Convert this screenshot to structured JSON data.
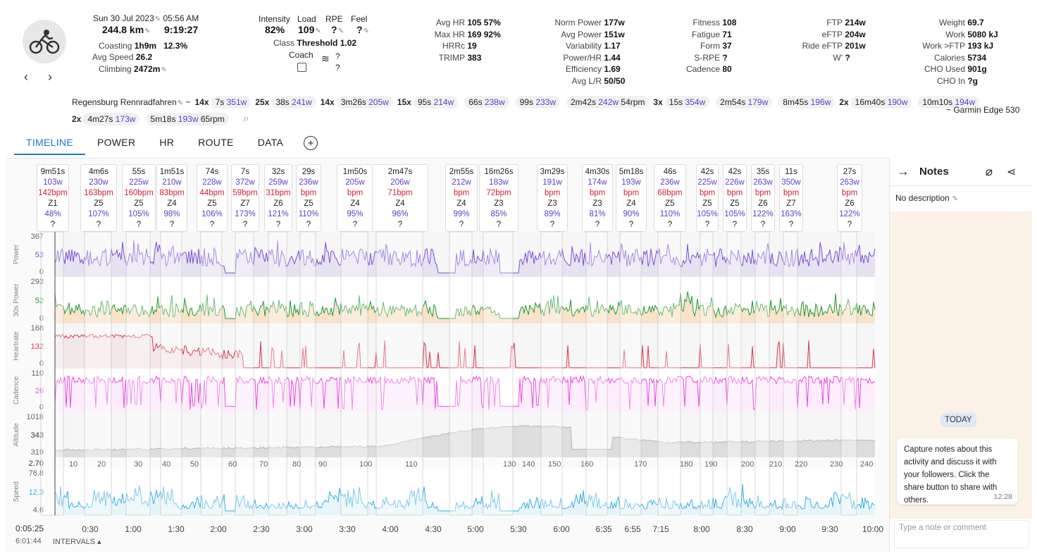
{
  "activity": {
    "date": "Sun 30 Jul 2023",
    "time": "05:56 AM",
    "distance": "244.8 km",
    "duration": "9:19:27",
    "coasting_label": "Coasting",
    "coasting_time": "1h9m",
    "coasting_pct": "12.3%",
    "avgspeed_label": "Avg Speed",
    "avgspeed": "26.2",
    "climbing_label": "Climbing",
    "climbing": "2472m"
  },
  "load": {
    "intensity_label": "Intensity",
    "intensity": "82%",
    "load_label": "Load",
    "load": "109",
    "rpe_label": "RPE",
    "rpe": "?",
    "feel_label": "Feel",
    "feel": "?",
    "class_label": "Class",
    "class": "Threshold",
    "class_val": "1.02",
    "coach_label": "Coach",
    "coach_q1": "?",
    "coach_q2": "?"
  },
  "hrstats": [
    {
      "k": "Avg HR",
      "v": "105",
      "x": "57%"
    },
    {
      "k": "Max HR",
      "v": "169",
      "x": "92%"
    },
    {
      "k": "HRRc",
      "v": "19",
      "x": ""
    },
    {
      "k": "TRIMP",
      "v": "383",
      "x": ""
    }
  ],
  "powerstats": [
    {
      "k": "Norm Power",
      "v": "177w"
    },
    {
      "k": "Avg Power",
      "v": "151w"
    },
    {
      "k": "Variability",
      "v": "1.17"
    },
    {
      "k": "Power/HR",
      "v": "1.44"
    },
    {
      "k": "Efficiency",
      "v": "1.69"
    },
    {
      "k": "Avg L/R",
      "v": "50/50"
    }
  ],
  "fitness": [
    {
      "k": "Fitness",
      "v": "108"
    },
    {
      "k": "Fatigue",
      "v": "71"
    },
    {
      "k": "Form",
      "v": "37"
    },
    {
      "k": "S-RPE",
      "v": "?"
    },
    {
      "k": "Cadence",
      "v": "80"
    }
  ],
  "ftp": [
    {
      "k": "FTP",
      "v": "214w"
    },
    {
      "k": "eFTP",
      "v": "204w"
    },
    {
      "k": "Ride eFTP",
      "v": "201w"
    },
    {
      "k": "W'",
      "v": "?"
    }
  ],
  "weight": [
    {
      "k": "Weight",
      "v": "69.7"
    },
    {
      "k": "Work",
      "v": "5080 kJ"
    },
    {
      "k": "Work >FTP",
      "v": "193 kJ"
    },
    {
      "k": "Calories",
      "v": "5734"
    },
    {
      "k": "CHO Used",
      "v": "901g"
    },
    {
      "k": "CHO In",
      "v": "?g"
    }
  ],
  "intervals_line": {
    "name": "Regensburg Rennradfahren",
    "tilde": "~",
    "device": "~ Garmin Edge 530"
  },
  "intervals": [
    {
      "n": "14x",
      "t": "7s",
      "w": "351w",
      "x": ""
    },
    {
      "n": "25x",
      "t": "38s",
      "w": "241w",
      "x": ""
    },
    {
      "n": "14x",
      "t": "3m26s",
      "w": "205w",
      "x": ""
    },
    {
      "n": "15x",
      "t": "95s",
      "w": "214w",
      "x": ""
    },
    {
      "n": "",
      "t": "66s",
      "w": "238w",
      "x": ""
    },
    {
      "n": "",
      "t": "99s",
      "w": "233w",
      "x": ""
    },
    {
      "n": "",
      "t": "2m42s",
      "w": "242w",
      "x": "54rpm"
    },
    {
      "n": "3x",
      "t": "15s",
      "w": "354w",
      "x": ""
    },
    {
      "n": "",
      "t": "2m54s",
      "w": "179w",
      "x": ""
    },
    {
      "n": "",
      "t": "8m45s",
      "w": "196w",
      "x": ""
    },
    {
      "n": "2x",
      "t": "16m40s",
      "w": "190w",
      "x": ""
    },
    {
      "n": "",
      "t": "10m10s",
      "w": "194w",
      "x": ""
    },
    {
      "n": "2x",
      "t": "4m27s",
      "w": "173w",
      "x": ""
    },
    {
      "n": "",
      "t": "5m18s",
      "w": "193w",
      "x": "65rpm"
    }
  ],
  "tabs": [
    "TIMELINE",
    "POWER",
    "HR",
    "ROUTE",
    "DATA"
  ],
  "boxes": [
    {
      "a": "9m51s",
      "b": "103w",
      "c": "142bpm",
      "d": "Z1",
      "e": "48%"
    },
    {
      "a": "4m6s",
      "b": "230w",
      "c": "163bpm",
      "d": "Z5",
      "e": "107%"
    },
    {
      "a": "55s",
      "b": "225w",
      "c": "160bpm",
      "d": "Z5",
      "e": "105%"
    },
    {
      "a": "1m51s",
      "b": "210w",
      "c": "83bpm",
      "d": "Z4",
      "e": "98%"
    },
    {
      "a": "74s",
      "b": "228w",
      "c": "44bpm",
      "d": "Z5",
      "e": "106%"
    },
    {
      "a": "7s",
      "b": "372w",
      "c": "59bpm",
      "d": "Z7",
      "e": "173%"
    },
    {
      "a": "32s",
      "b": "259w",
      "c": "31bpm",
      "d": "Z6",
      "e": "121%"
    },
    {
      "a": "29s",
      "b": "236w",
      "c": "bpm",
      "d": "Z5",
      "e": "110%"
    },
    {
      "a": "1m50s",
      "b": "205w",
      "c": "bpm",
      "d": "Z4",
      "e": "95%"
    },
    {
      "a": "2m47s",
      "b": "206w",
      "c": "71bpm",
      "d": "Z4",
      "e": "96%"
    },
    {
      "a": "2m55s",
      "b": "212w",
      "c": "bpm",
      "d": "Z4",
      "e": "99%"
    },
    {
      "a": "16m26s",
      "b": "183w",
      "c": "72bpm",
      "d": "Z3",
      "e": "85%"
    },
    {
      "a": "3m29s",
      "b": "191w",
      "c": "bpm",
      "d": "Z3",
      "e": "89%"
    },
    {
      "a": "4m30s",
      "b": "174w",
      "c": "bpm",
      "d": "Z3",
      "e": "81%"
    },
    {
      "a": "5m18s",
      "b": "193w",
      "c": "bpm",
      "d": "Z4",
      "e": "90%"
    },
    {
      "a": "46s",
      "b": "236w",
      "c": "68bpm",
      "d": "Z5",
      "e": "110%"
    },
    {
      "a": "42s",
      "b": "225w",
      "c": "bpm",
      "d": "Z5",
      "e": "105%"
    },
    {
      "a": "42s",
      "b": "226w",
      "c": "bpm",
      "d": "Z5",
      "e": "105%"
    },
    {
      "a": "35s",
      "b": "263w",
      "c": "bpm",
      "d": "Z6",
      "e": "122%"
    },
    {
      "a": "11s",
      "b": "350w",
      "c": "bpm",
      "d": "Z7",
      "e": "163%"
    },
    {
      "a": "27s",
      "b": "263w",
      "c": "bpm",
      "d": "Z6",
      "e": "122%"
    }
  ],
  "box_q": "?",
  "lanes": {
    "power": {
      "label": "Power",
      "max": "367",
      "mid": "53",
      "min": "0"
    },
    "power30": {
      "label": "30s Power",
      "max": "293",
      "mid": "52",
      "min": "0"
    },
    "hr": {
      "label": "Heartrate",
      "max": "168",
      "mid": "132",
      "min": "0"
    },
    "cadence": {
      "label": "Cadence",
      "max": "110",
      "mid": "26",
      "min": "0"
    },
    "altitude": {
      "label": "Altitude",
      "max": "1018",
      "mid": "343",
      "min": "319",
      "extra": "2.70"
    },
    "speed": {
      "label": "Speed",
      "max": "76.8",
      "mid": "12.3",
      "min": "4.6"
    }
  },
  "dist_ticks": [
    "10",
    "20",
    "30",
    "40",
    "50",
    "60",
    "70",
    "80",
    "90",
    "100",
    "110",
    "130",
    "140",
    "150",
    "160",
    "170",
    "180",
    "190",
    "200",
    "210",
    "220",
    "230",
    "240"
  ],
  "time_ticks": [
    "0:30",
    "1:00",
    "1:30",
    "2:00",
    "2:30",
    "3:00",
    "3:30",
    "4:00",
    "4:30",
    "5:00",
    "5:30",
    "6:00",
    "6:35",
    "6:55",
    "7:15",
    "8:00",
    "8:30",
    "9:00",
    "9:30",
    "10:00"
  ],
  "cursor_time": "0:05:25",
  "total_time": "6:01:44",
  "intervals_toggle": "INTERVALS",
  "notes": {
    "title": "Notes",
    "desc": "No description",
    "today": "TODAY",
    "message": "Capture notes about this activity and discuss it with your followers. Click the share button to share with others.",
    "time": "12:28",
    "placeholder": "Type a note or comment"
  },
  "colors": {
    "accent": "#1e78c8",
    "power": "#7b4fd6",
    "hr": "#d83a52",
    "cadence": "#e94ae0",
    "speed": "#3bb0dc",
    "altitude": "#c9c9c9"
  }
}
